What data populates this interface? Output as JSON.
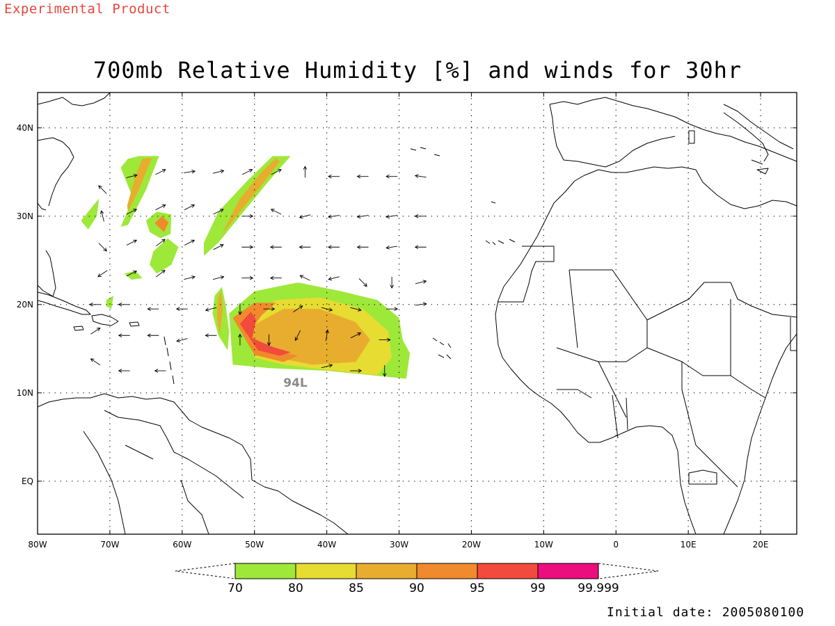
{
  "header": {
    "experimental_label": "Experimental Product",
    "title": "700mb Relative Humidity [%] and winds for 30hr"
  },
  "footer": {
    "initial_date": "Initial date: 2005080100"
  },
  "map": {
    "lon_range": [
      -80,
      25
    ],
    "lat_range": [
      -6,
      44
    ],
    "lon_ticks": [
      {
        "lon": -80,
        "label": "80W"
      },
      {
        "lon": -70,
        "label": "70W"
      },
      {
        "lon": -60,
        "label": "60W"
      },
      {
        "lon": -50,
        "label": "50W"
      },
      {
        "lon": -40,
        "label": "40W"
      },
      {
        "lon": -30,
        "label": "30W"
      },
      {
        "lon": -20,
        "label": "20W"
      },
      {
        "lon": -10,
        "label": "10W"
      },
      {
        "lon": 0,
        "label": "0"
      },
      {
        "lon": 10,
        "label": "10E"
      },
      {
        "lon": 20,
        "label": "20E"
      }
    ],
    "lat_ticks": [
      {
        "lat": 40,
        "label": "40N"
      },
      {
        "lat": 30,
        "label": "30N"
      },
      {
        "lat": 20,
        "label": "20N"
      },
      {
        "lat": 10,
        "label": "10N"
      },
      {
        "lat": 0,
        "label": "EQ"
      }
    ],
    "grid": true,
    "storm_label": {
      "text": "94L",
      "lon": -46,
      "lat": 10.7,
      "color": "#8a8a8a"
    }
  },
  "colorbar": {
    "levels": [
      "70",
      "80",
      "85",
      "90",
      "95",
      "99",
      "99.999"
    ],
    "colors": [
      "#9ee83a",
      "#e6dc32",
      "#e8ad2e",
      "#f08a2c",
      "#f24a3c",
      "#ec0d7e"
    ]
  },
  "humidity_regions": [
    {
      "level": 70,
      "points": [
        [
          -53.5,
          19
        ],
        [
          -50,
          21.5
        ],
        [
          -44,
          22.5
        ],
        [
          -38,
          21.5
        ],
        [
          -33,
          20.5
        ],
        [
          -30,
          18.5
        ],
        [
          -29.5,
          16
        ],
        [
          -28.5,
          14.5
        ],
        [
          -29,
          11.6
        ],
        [
          -40,
          12.5
        ],
        [
          -48,
          12.8
        ],
        [
          -53,
          13.2
        ]
      ]
    },
    {
      "level": 80,
      "points": [
        [
          -52,
          18
        ],
        [
          -47,
          20.5
        ],
        [
          -41,
          20.8
        ],
        [
          -35,
          19.5
        ],
        [
          -31.5,
          17
        ],
        [
          -31,
          14
        ],
        [
          -33,
          12
        ],
        [
          -40,
          12.6
        ],
        [
          -46,
          13.2
        ],
        [
          -50,
          14
        ]
      ]
    },
    {
      "level": 85,
      "points": [
        [
          -50.5,
          17.5
        ],
        [
          -46,
          19.5
        ],
        [
          -41,
          19.5
        ],
        [
          -36,
          18
        ],
        [
          -34,
          16
        ],
        [
          -36,
          13.5
        ],
        [
          -42,
          13.2
        ],
        [
          -47,
          14
        ],
        [
          -50,
          15
        ]
      ]
    },
    {
      "level": 90,
      "points": [
        [
          -53,
          18.5
        ],
        [
          -50,
          20.2
        ],
        [
          -47,
          20.2
        ],
        [
          -49,
          18.8
        ],
        [
          -51,
          16.5
        ],
        [
          -48,
          15
        ],
        [
          -44,
          14.2
        ],
        [
          -46,
          13.5
        ],
        [
          -50,
          14.3
        ]
      ]
    },
    {
      "level": 95,
      "points": [
        [
          -52,
          17.8
        ],
        [
          -50.5,
          19.2
        ],
        [
          -49.8,
          18.3
        ],
        [
          -50.3,
          16.2
        ],
        [
          -47.5,
          15.2
        ],
        [
          -45,
          14.6
        ],
        [
          -46.5,
          14.2
        ],
        [
          -49.5,
          14.8
        ]
      ]
    },
    {
      "level": 70,
      "points": [
        [
          -72.5,
          31
        ],
        [
          -71.5,
          32
        ],
        [
          -71.8,
          30
        ],
        [
          -73,
          28.5
        ],
        [
          -74,
          29.5
        ]
      ]
    },
    {
      "level": 70,
      "points": [
        [
          -68.5,
          35.5
        ],
        [
          -67.5,
          36.5
        ],
        [
          -66,
          36.8
        ],
        [
          -63.2,
          36.8
        ],
        [
          -65,
          33
        ],
        [
          -67.5,
          29
        ],
        [
          -68.5,
          28.8
        ],
        [
          -66.8,
          32
        ]
      ]
    },
    {
      "level": 85,
      "points": [
        [
          -66.5,
          34.5
        ],
        [
          -65.5,
          36.5
        ],
        [
          -64.2,
          36.6
        ],
        [
          -66,
          33
        ],
        [
          -67.5,
          30.5
        ],
        [
          -67.6,
          31.2
        ]
      ]
    },
    {
      "level": 70,
      "points": [
        [
          -65,
          29.5
        ],
        [
          -63.5,
          30.5
        ],
        [
          -61.5,
          30.2
        ],
        [
          -61.6,
          28
        ],
        [
          -63,
          27.5
        ],
        [
          -64.5,
          28.2
        ]
      ]
    },
    {
      "level": 90,
      "points": [
        [
          -63.8,
          29.2
        ],
        [
          -62.8,
          30
        ],
        [
          -61.9,
          29.3
        ],
        [
          -62.5,
          28.2
        ]
      ]
    },
    {
      "level": 70,
      "points": [
        [
          -55,
          30.5
        ],
        [
          -51,
          34
        ],
        [
          -47.5,
          36.8
        ],
        [
          -45,
          36.8
        ],
        [
          -48,
          34
        ],
        [
          -51,
          31
        ],
        [
          -55,
          27
        ],
        [
          -57,
          25.5
        ],
        [
          -57,
          27
        ]
      ]
    },
    {
      "level": 85,
      "points": [
        [
          -52,
          32
        ],
        [
          -49,
          35
        ],
        [
          -47,
          36.6
        ],
        [
          -46.5,
          36.2
        ],
        [
          -49,
          33.5
        ],
        [
          -52,
          30.5
        ],
        [
          -54.5,
          28
        ]
      ]
    },
    {
      "level": 70,
      "points": [
        [
          -55.5,
          21
        ],
        [
          -54.5,
          22
        ],
        [
          -54,
          20
        ],
        [
          -53.5,
          17
        ],
        [
          -53.7,
          14.8
        ],
        [
          -55,
          16.5
        ],
        [
          -55.8,
          19
        ]
      ]
    },
    {
      "level": 85,
      "points": [
        [
          -55,
          20.8
        ],
        [
          -54.6,
          21.5
        ],
        [
          -54.4,
          19.5
        ],
        [
          -54.8,
          16.5
        ],
        [
          -55.2,
          18.5
        ]
      ]
    },
    {
      "level": 70,
      "points": [
        [
          -64,
          26
        ],
        [
          -62,
          27.5
        ],
        [
          -60.5,
          26.5
        ],
        [
          -61.5,
          24.5
        ],
        [
          -63.5,
          23.5
        ],
        [
          -64.5,
          24.5
        ]
      ]
    },
    {
      "level": 70,
      "points": [
        [
          -68,
          23.5
        ],
        [
          -66.5,
          23.8
        ],
        [
          -65.5,
          23
        ],
        [
          -67,
          22.8
        ]
      ]
    },
    {
      "level": 70,
      "points": [
        [
          -70.5,
          20.5
        ],
        [
          -69.5,
          21
        ],
        [
          -69.8,
          19.5
        ],
        [
          -70.5,
          19.8
        ]
      ]
    }
  ],
  "wind_vectors": [
    {
      "lon": -71,
      "lat": 33,
      "u": -1.5,
      "v": 1.5
    },
    {
      "lon": -67,
      "lat": 34.5,
      "u": 2,
      "v": 0.5
    },
    {
      "lon": -63,
      "lat": 35,
      "u": 2,
      "v": 1
    },
    {
      "lon": -59,
      "lat": 35,
      "u": 2,
      "v": 0.3
    },
    {
      "lon": -55,
      "lat": 35,
      "u": 2,
      "v": 0.5
    },
    {
      "lon": -51,
      "lat": 35,
      "u": 2,
      "v": 1
    },
    {
      "lon": -47,
      "lat": 35,
      "u": 2,
      "v": 1
    },
    {
      "lon": -43,
      "lat": 35,
      "u": 0,
      "v": 2
    },
    {
      "lon": -39,
      "lat": 34.5,
      "u": -2,
      "v": 0
    },
    {
      "lon": -35,
      "lat": 34.5,
      "u": -2,
      "v": 0
    },
    {
      "lon": -31,
      "lat": 34.5,
      "u": -2,
      "v": 0
    },
    {
      "lon": -27,
      "lat": 34.5,
      "u": -2,
      "v": 0.3
    },
    {
      "lon": -71,
      "lat": 30,
      "u": -0.5,
      "v": 2
    },
    {
      "lon": -67,
      "lat": 30.5,
      "u": 2,
      "v": 1
    },
    {
      "lon": -63,
      "lat": 31,
      "u": 2,
      "v": 1
    },
    {
      "lon": -59,
      "lat": 31,
      "u": 2,
      "v": 1
    },
    {
      "lon": -55,
      "lat": 30.5,
      "u": 2,
      "v": 1
    },
    {
      "lon": -51,
      "lat": 30,
      "u": 2,
      "v": 0
    },
    {
      "lon": -47,
      "lat": 30.5,
      "u": -2,
      "v": 1
    },
    {
      "lon": -43,
      "lat": 30,
      "u": -2,
      "v": -0.5
    },
    {
      "lon": -39,
      "lat": 30,
      "u": -2,
      "v": -0.3
    },
    {
      "lon": -35,
      "lat": 30,
      "u": -2,
      "v": -0.3
    },
    {
      "lon": -31,
      "lat": 30,
      "u": -2,
      "v": -0.3
    },
    {
      "lon": -27,
      "lat": 30,
      "u": -2,
      "v": 0
    },
    {
      "lon": -71,
      "lat": 26.5,
      "u": 1,
      "v": -1
    },
    {
      "lon": -67,
      "lat": 27,
      "u": 2,
      "v": 1
    },
    {
      "lon": -63,
      "lat": 27,
      "u": 2,
      "v": 1.5
    },
    {
      "lon": -59,
      "lat": 27,
      "u": 2,
      "v": 1
    },
    {
      "lon": -55,
      "lat": 26.5,
      "u": 2,
      "v": 1
    },
    {
      "lon": -51,
      "lat": 26.5,
      "u": 2,
      "v": 0
    },
    {
      "lon": -47,
      "lat": 26.5,
      "u": -2,
      "v": 0
    },
    {
      "lon": -43,
      "lat": 26.5,
      "u": -2,
      "v": 0
    },
    {
      "lon": -39,
      "lat": 26.5,
      "u": -2,
      "v": 0
    },
    {
      "lon": -35,
      "lat": 26.5,
      "u": -2,
      "v": 0
    },
    {
      "lon": -31,
      "lat": 26.5,
      "u": -2,
      "v": -0.3
    },
    {
      "lon": -27,
      "lat": 26.5,
      "u": -2,
      "v": 0
    },
    {
      "lon": -71,
      "lat": 23.5,
      "u": -1.5,
      "v": -1
    },
    {
      "lon": -67,
      "lat": 23.5,
      "u": 2,
      "v": 1
    },
    {
      "lon": -63,
      "lat": 23.5,
      "u": 2,
      "v": 1.5
    },
    {
      "lon": -59,
      "lat": 23,
      "u": 2,
      "v": 0.5
    },
    {
      "lon": -55,
      "lat": 23,
      "u": 2,
      "v": 0.5
    },
    {
      "lon": -51,
      "lat": 23,
      "u": 2,
      "v": 0
    },
    {
      "lon": -47,
      "lat": 23,
      "u": -2,
      "v": 0
    },
    {
      "lon": -43,
      "lat": 23,
      "u": -2,
      "v": 1
    },
    {
      "lon": -39,
      "lat": 23,
      "u": -2,
      "v": -0.5
    },
    {
      "lon": -35,
      "lat": 22.5,
      "u": 1.5,
      "v": -1.5
    },
    {
      "lon": -31,
      "lat": 22.5,
      "u": 0,
      "v": -2
    },
    {
      "lon": -27,
      "lat": 22.5,
      "u": 2,
      "v": 0.5
    },
    {
      "lon": -72,
      "lat": 20,
      "u": -2,
      "v": 0
    },
    {
      "lon": -68,
      "lat": 20,
      "u": -2,
      "v": 0
    },
    {
      "lon": -64,
      "lat": 19.5,
      "u": -2,
      "v": 0
    },
    {
      "lon": -60,
      "lat": 19.5,
      "u": -2,
      "v": 0
    },
    {
      "lon": -56,
      "lat": 19.5,
      "u": -2,
      "v": -0.5
    },
    {
      "lon": -52,
      "lat": 19.5,
      "u": 0,
      "v": -2
    },
    {
      "lon": -48,
      "lat": 19.5,
      "u": 2,
      "v": 0
    },
    {
      "lon": -44,
      "lat": 19.5,
      "u": 1.5,
      "v": 1
    },
    {
      "lon": -40,
      "lat": 19.5,
      "u": 2,
      "v": -0.5
    },
    {
      "lon": -36,
      "lat": 19.5,
      "u": 2,
      "v": -0.5
    },
    {
      "lon": -31,
      "lat": 19.5,
      "u": 2,
      "v": 0
    },
    {
      "lon": -27,
      "lat": 20,
      "u": 2,
      "v": 0.3
    },
    {
      "lon": -72,
      "lat": 17,
      "u": 1.5,
      "v": 1
    },
    {
      "lon": -68,
      "lat": 16.5,
      "u": -2,
      "v": 0
    },
    {
      "lon": -64,
      "lat": 16.5,
      "u": -2,
      "v": 0
    },
    {
      "lon": -60,
      "lat": 16,
      "u": -2,
      "v": -0.5
    },
    {
      "lon": -56,
      "lat": 16.5,
      "u": -2,
      "v": 0
    },
    {
      "lon": -52,
      "lat": 16,
      "u": 0,
      "v": 2
    },
    {
      "lon": -48,
      "lat": 16,
      "u": 0,
      "v": -2
    },
    {
      "lon": -44,
      "lat": 16.5,
      "u": -1,
      "v": -2
    },
    {
      "lon": -40,
      "lat": 16.5,
      "u": 0.3,
      "v": 2
    },
    {
      "lon": -36,
      "lat": 16.5,
      "u": 2,
      "v": 1
    },
    {
      "lon": -32,
      "lat": 16,
      "u": 2,
      "v": 0
    },
    {
      "lon": -72,
      "lat": 13.5,
      "u": -1.5,
      "v": 1
    },
    {
      "lon": -68,
      "lat": 12.5,
      "u": -2,
      "v": 0
    },
    {
      "lon": -63,
      "lat": 12.5,
      "u": -2,
      "v": 0
    },
    {
      "lon": -40,
      "lat": 13,
      "u": 2,
      "v": 0.5
    },
    {
      "lon": -36,
      "lat": 12.5,
      "u": 2,
      "v": 0
    },
    {
      "lon": -32,
      "lat": 12.5,
      "u": 0,
      "v": -2
    }
  ]
}
